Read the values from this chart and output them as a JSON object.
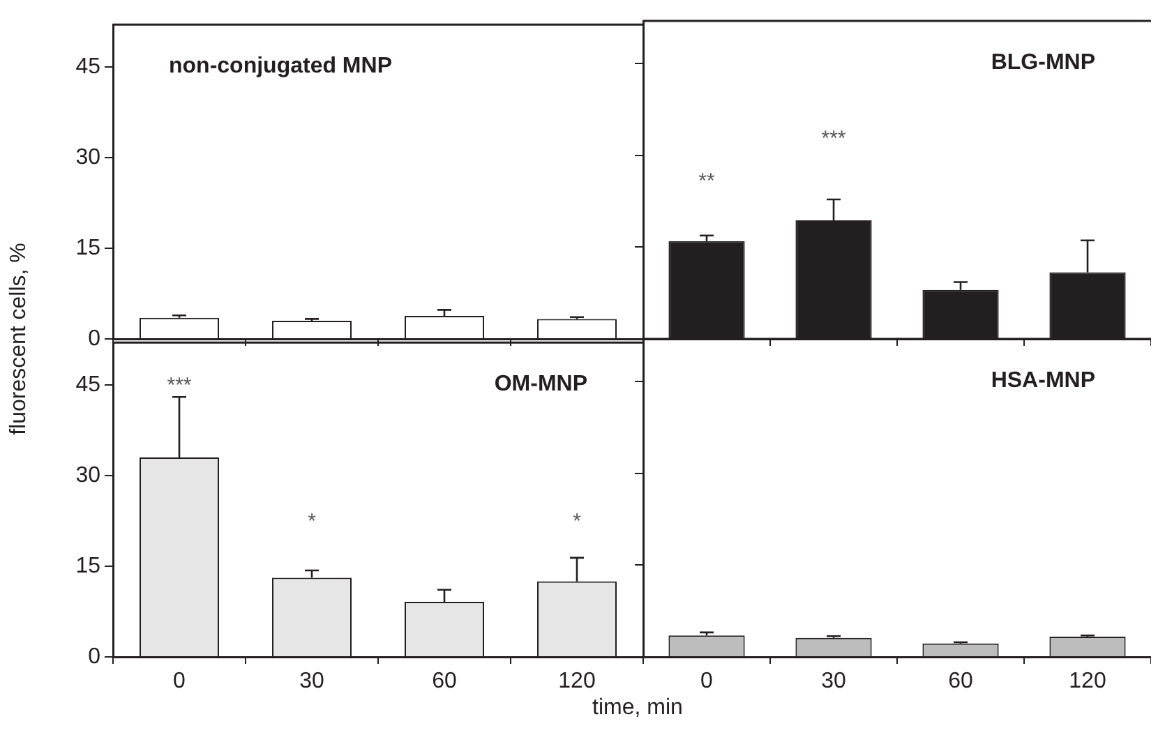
{
  "chart_data": [
    {
      "type": "bar",
      "title": "non-conjugated MNP",
      "ylabel": "fluorescent cells, %",
      "categories": [
        "0",
        "30",
        "60",
        "120"
      ],
      "values": [
        3.5,
        3.0,
        3.8,
        3.3
      ],
      "errors": [
        0.4,
        0.3,
        1.0,
        0.3
      ],
      "color": "#ffffff",
      "ylim": [
        0,
        52
      ],
      "yticks": [
        0,
        15,
        30,
        45
      ],
      "tick_labels": "y"
    },
    {
      "type": "bar",
      "title": "BLG-MNP",
      "categories": [
        "0",
        "30",
        "60",
        "120"
      ],
      "values": [
        16.0,
        19.4,
        8.0,
        10.9
      ],
      "errors": [
        0.9,
        3.4,
        1.3,
        5.2
      ],
      "color": "#231f20",
      "ylim": [
        0,
        52
      ],
      "yticks": [
        0,
        15,
        30,
        45
      ],
      "tick_labels": false,
      "annotations": [
        "**",
        "***"
      ]
    },
    {
      "type": "bar",
      "title": "OM-MNP",
      "categories": [
        "0",
        "30",
        "60",
        "120"
      ],
      "values": [
        33.0,
        13.1,
        9.1,
        12.5
      ],
      "errors": [
        10.0,
        1.2,
        2.0,
        3.9
      ],
      "color": "#e6e6e6",
      "ylim": [
        0,
        52
      ],
      "yticks": [
        0,
        15,
        30,
        45
      ],
      "annotations": [
        "***",
        "*",
        "*"
      ]
    },
    {
      "type": "bar",
      "title": "HSA-MNP",
      "xlabel": "time, min",
      "categories": [
        "0",
        "30",
        "60",
        "120"
      ],
      "values": [
        3.5,
        3.1,
        2.2,
        3.3
      ],
      "errors": [
        0.5,
        0.3,
        0.2,
        0.2
      ],
      "color": "#bdbdbd",
      "ylim": [
        0,
        52
      ],
      "yticks": [
        0,
        15,
        30,
        45
      ],
      "tick_labels": "x"
    }
  ]
}
